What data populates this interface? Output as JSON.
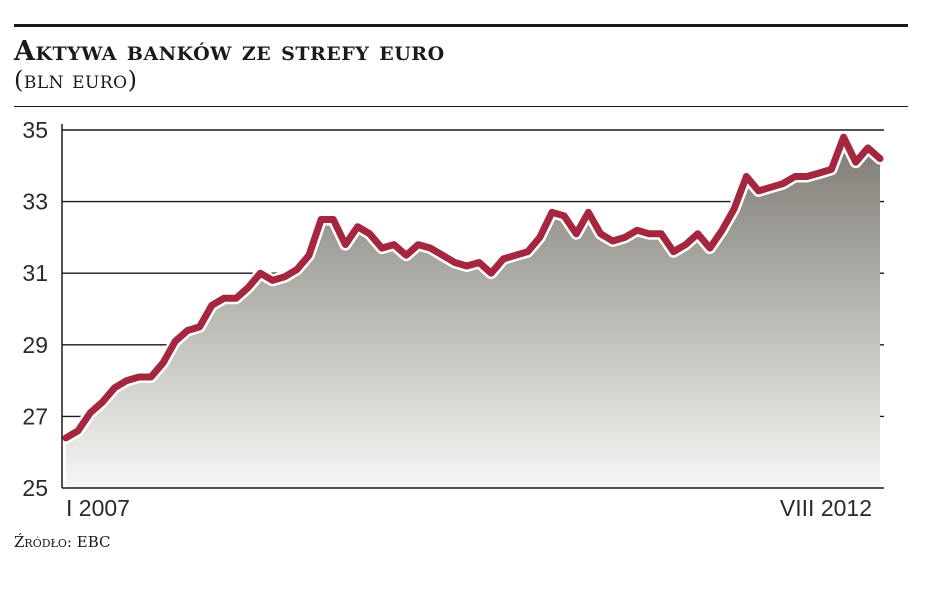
{
  "header": {
    "title": "Aktywa banków ze strefy euro",
    "subtitle": "(bln euro)"
  },
  "footer": {
    "source": "Źródło: EBC"
  },
  "colors": {
    "line": "#a5273f",
    "area_top": "#7d7a72",
    "area_bottom": "#f6f6f4",
    "grid": "#1a1a1a",
    "background": "#ffffff"
  },
  "chart_data": {
    "type": "area",
    "title": "Aktywa banków ze strefy euro",
    "subtitle": "(bln euro)",
    "xlabel": "",
    "ylabel": "",
    "x_tick_labels": [
      "I 2007",
      "VIII 2012"
    ],
    "x_range": [
      "I 2007",
      "VIII 2012"
    ],
    "y_ticks": [
      25,
      27,
      29,
      31,
      33,
      35
    ],
    "ylim": [
      25,
      35
    ],
    "grid": "horizontal",
    "legend": "none",
    "series": [
      {
        "values": [
          26.4,
          26.6,
          27.1,
          27.4,
          27.8,
          28.0,
          28.1,
          28.1,
          28.5,
          29.1,
          29.4,
          29.5,
          30.1,
          30.3,
          30.3,
          30.6,
          31.0,
          30.8,
          30.9,
          31.1,
          31.5,
          32.5,
          32.5,
          31.8,
          32.3,
          32.1,
          31.7,
          31.8,
          31.5,
          31.8,
          31.7,
          31.5,
          31.3,
          31.2,
          31.3,
          31.0,
          31.4,
          31.5,
          31.6,
          32.0,
          32.7,
          32.6,
          32.1,
          32.7,
          32.1,
          31.9,
          32.0,
          32.2,
          32.1,
          32.1,
          31.6,
          31.8,
          32.1,
          31.7,
          32.2,
          32.8,
          33.7,
          33.3,
          33.4,
          33.5,
          33.7,
          33.7,
          33.8,
          33.9,
          34.8,
          34.1,
          34.5,
          34.2
        ]
      }
    ]
  }
}
